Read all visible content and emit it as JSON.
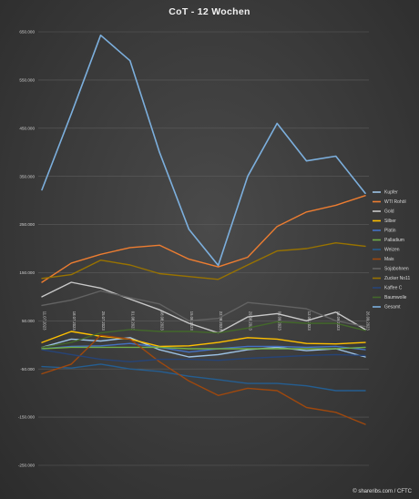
{
  "chart_data": {
    "type": "line",
    "title": "CoT - 12 Wochen",
    "xlabel": "",
    "ylabel": "",
    "ylim": [
      -300000,
      700000
    ],
    "yticks": [
      650000,
      550000,
      450000,
      350000,
      250000,
      150000,
      50000,
      -50000,
      -150000,
      -250000
    ],
    "ytick_labels": [
      "650.000",
      "550.000",
      "450.000",
      "350.000",
      "250.000",
      "150.000",
      "50.000",
      "-50.000",
      "-150.000",
      "-250.000"
    ],
    "x": [
      "11.07.2023",
      "18.07.2023",
      "25.07.2023",
      "01.08.2023",
      "08.08.2023",
      "15.08.2023",
      "22.08.2023",
      "29.08.2023",
      "05.09.2023",
      "12.09.2023",
      "19.09.2023",
      "26.09.2023"
    ],
    "grid": true,
    "legend_position": "right",
    "series": [
      {
        "name": "Kupfer",
        "color": "#9dc3e6",
        "values": [
          -5000,
          12000,
          8000,
          15000,
          -10000,
          -25000,
          -20000,
          -10000,
          -5000,
          -12000,
          -8000,
          -25000
        ]
      },
      {
        "name": "WTI Rohöl",
        "color": "#ed7d31",
        "values": [
          130000,
          170000,
          188000,
          202000,
          207000,
          178000,
          162000,
          182000,
          246000,
          276000,
          290000,
          310000
        ]
      },
      {
        "name": "Gold",
        "color": "#c8c8c8",
        "values": [
          100000,
          130000,
          118000,
          95000,
          73000,
          45000,
          25000,
          58000,
          65000,
          50000,
          68000,
          32000
        ]
      },
      {
        "name": "Silber",
        "color": "#ffc000",
        "values": [
          5000,
          28000,
          18000,
          12000,
          -3000,
          -2000,
          5000,
          15000,
          12000,
          3000,
          2000,
          5000
        ]
      },
      {
        "name": "Platin",
        "color": "#4472c4",
        "values": [
          -8000,
          -3000,
          -2000,
          3000,
          -5000,
          -15000,
          -8000,
          -3000,
          -3000,
          -5000,
          -3000,
          -10000
        ]
      },
      {
        "name": "Palladium",
        "color": "#70ad47",
        "values": [
          -8000,
          -5000,
          -5000,
          -5000,
          -5000,
          -8000,
          -8000,
          -8000,
          -8000,
          -8000,
          -8000,
          -5000
        ]
      },
      {
        "name": "Weizen",
        "color": "#255e91",
        "values": [
          -45000,
          -48000,
          -40000,
          -50000,
          -55000,
          -65000,
          -72000,
          -80000,
          -80000,
          -85000,
          -95000,
          -95000
        ]
      },
      {
        "name": "Mais",
        "color": "#9e480e",
        "values": [
          -60000,
          -40000,
          20000,
          12000,
          -35000,
          -75000,
          -105000,
          -90000,
          -95000,
          -130000,
          -140000,
          -165000
        ]
      },
      {
        "name": "Sojabohnen",
        "color": "#636363",
        "values": [
          82000,
          93000,
          112000,
          98000,
          85000,
          50000,
          55000,
          88000,
          82000,
          75000,
          50000,
          38000
        ]
      },
      {
        "name": "Zucker No11",
        "color": "#997300",
        "values": [
          138000,
          146000,
          176000,
          166000,
          148000,
          142000,
          136000,
          166000,
          195000,
          200000,
          212000,
          205000
        ]
      },
      {
        "name": "Kaffee C",
        "color": "#264478",
        "values": [
          -10000,
          -20000,
          -30000,
          -35000,
          -30000,
          -30000,
          -32000,
          -28000,
          -25000,
          -22000,
          -20000,
          -22000
        ]
      },
      {
        "name": "Baumwolle",
        "color": "#43682b",
        "values": [
          -5000,
          5000,
          25000,
          32000,
          28000,
          28000,
          25000,
          35000,
          48000,
          45000,
          45000,
          30000
        ]
      },
      {
        "name": "Gesamt",
        "color": "#7cafdd",
        "values": [
          322000,
          480000,
          643000,
          590000,
          400000,
          240000,
          165000,
          350000,
          460000,
          382000,
          392000,
          315000
        ]
      }
    ]
  },
  "credit": "© shareribs.com / CFTC"
}
